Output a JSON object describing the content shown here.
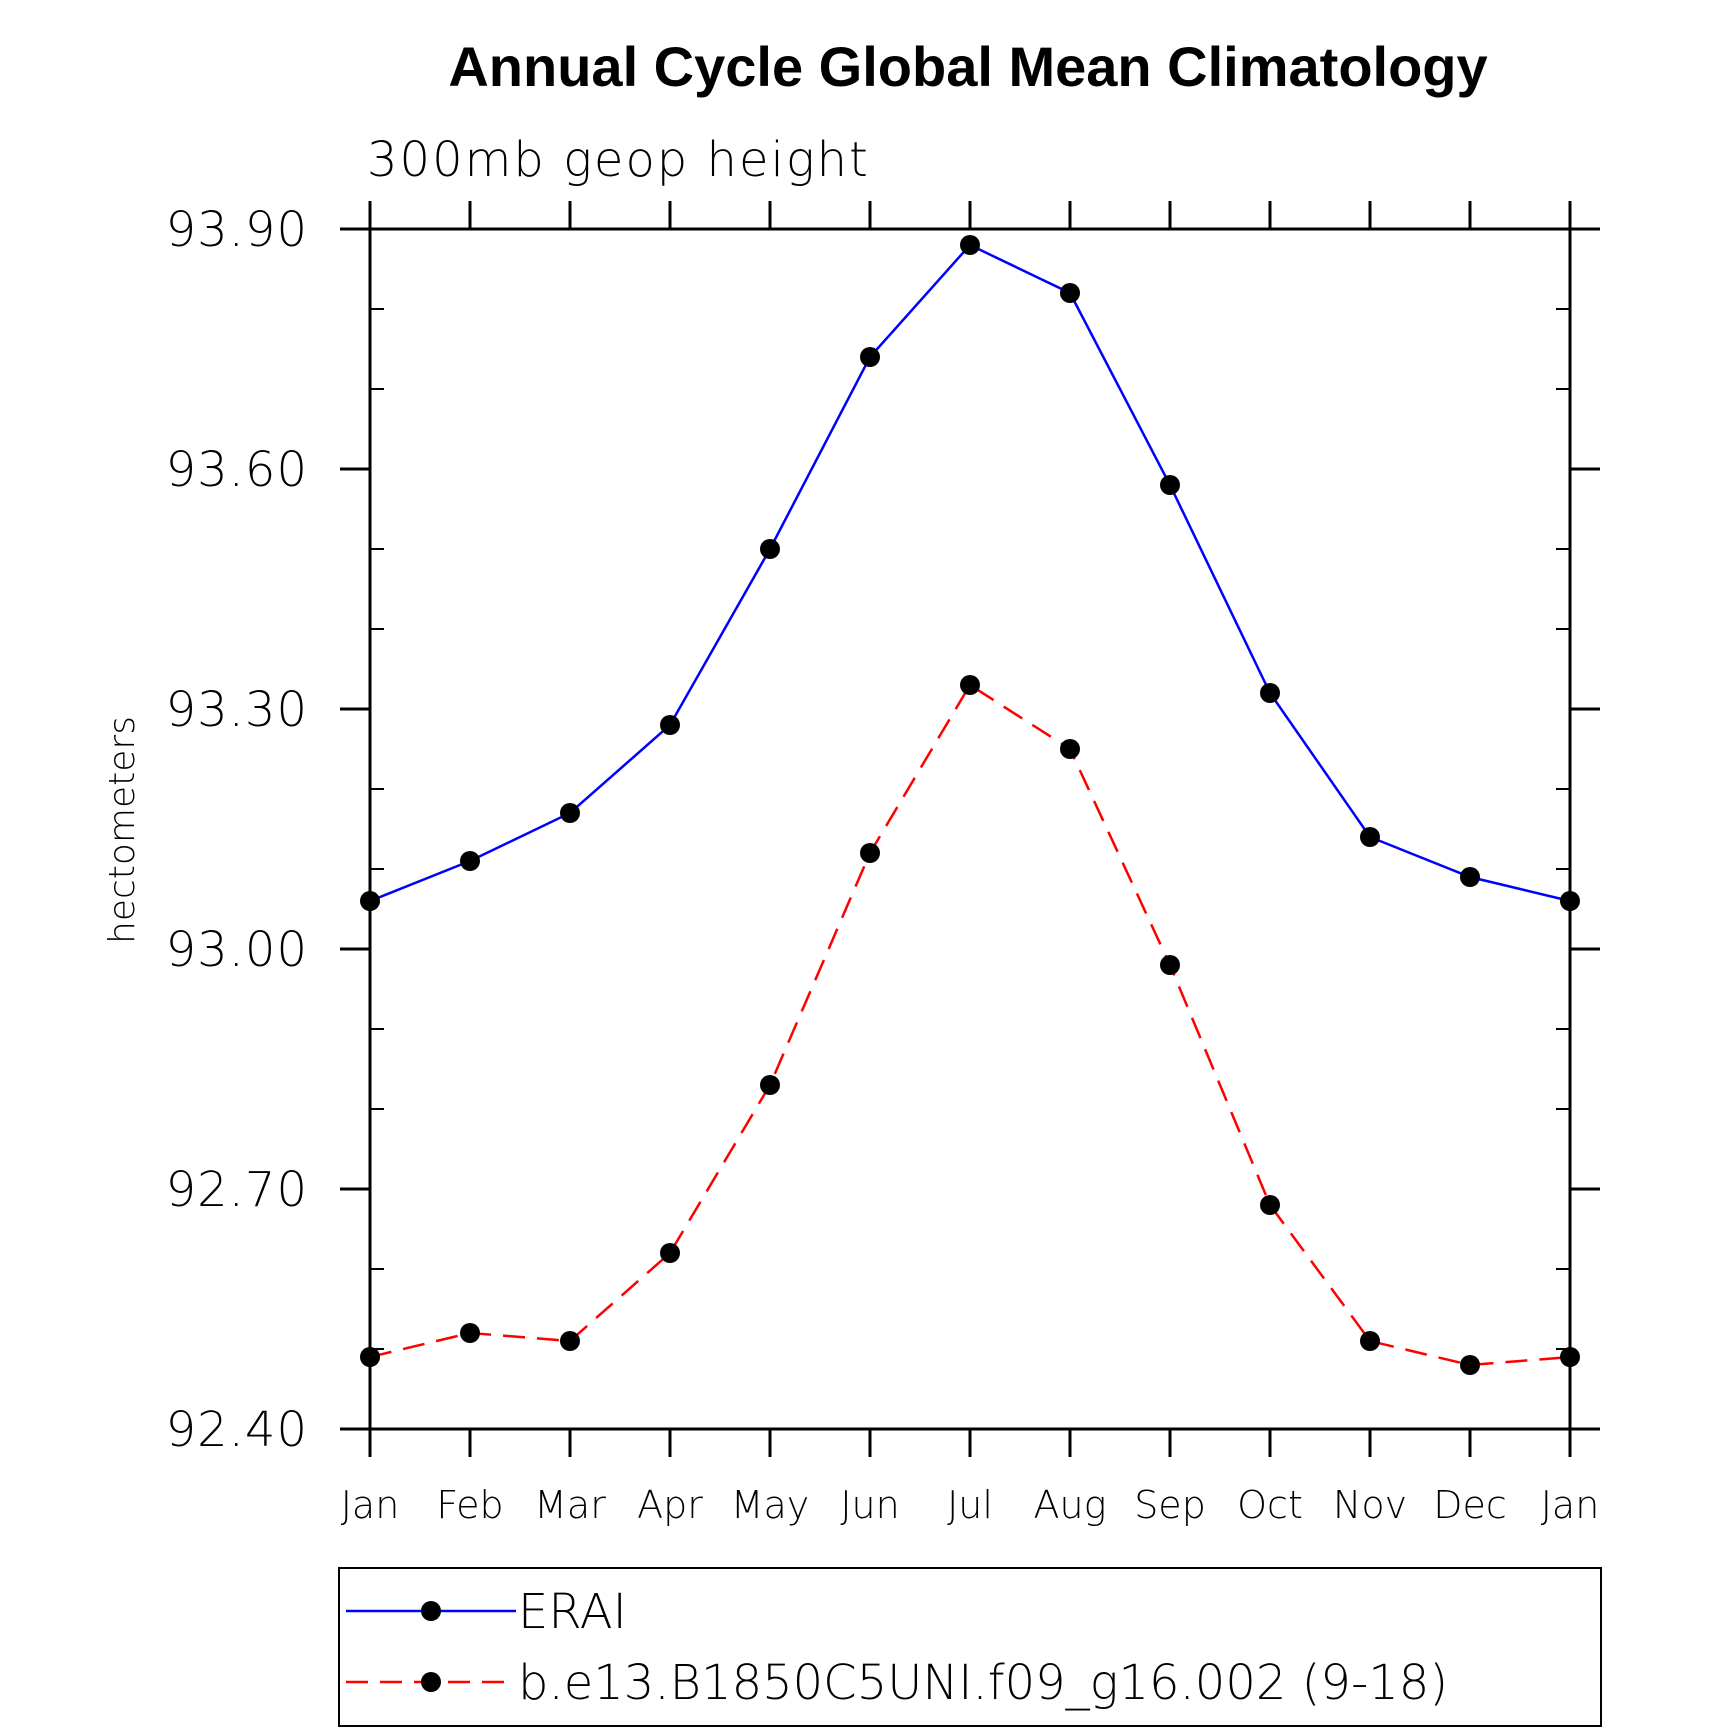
{
  "chart_data": {
    "type": "line",
    "title": "Annual Cycle Global Mean Climatology",
    "subtitle": "300mb geop height",
    "xlabel": "",
    "ylabel": "hectometers",
    "categories": [
      "Jan",
      "Feb",
      "Mar",
      "Apr",
      "May",
      "Jun",
      "Jul",
      "Aug",
      "Sep",
      "Oct",
      "Nov",
      "Dec",
      "Jan"
    ],
    "ylim": [
      92.4,
      93.9
    ],
    "yticks": [
      "93.90",
      "93.60",
      "93.30",
      "93.00",
      "92.70",
      "92.40"
    ],
    "legend_position": "bottom",
    "grid": false,
    "series": [
      {
        "name": "ERAI",
        "color": "#0000ff",
        "dash": "solid",
        "values": [
          93.06,
          93.11,
          93.17,
          93.28,
          93.5,
          93.74,
          93.88,
          93.82,
          93.58,
          93.32,
          93.14,
          93.09,
          93.06
        ]
      },
      {
        "name": "b.e13.B1850C5UNI.f09_g16.002 (9-18)",
        "color": "#ff0000",
        "dash": "dashed",
        "values": [
          92.49,
          92.52,
          92.51,
          92.62,
          92.83,
          93.12,
          93.33,
          93.25,
          92.98,
          92.68,
          92.51,
          92.48,
          92.49
        ]
      }
    ]
  }
}
